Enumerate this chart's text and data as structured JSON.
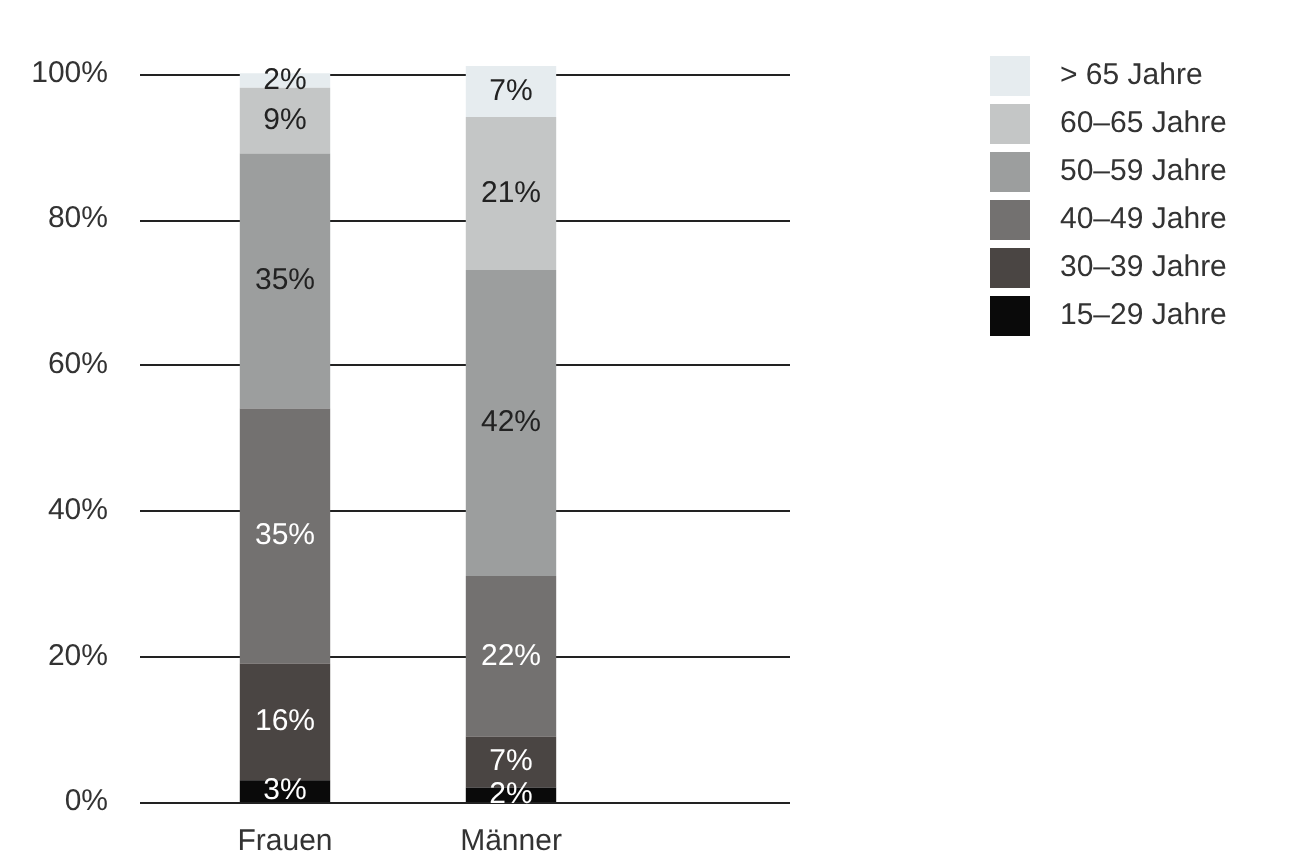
{
  "chart_data": {
    "type": "bar",
    "stacked": true,
    "categories": [
      "Frauen",
      "Männer"
    ],
    "series": [
      {
        "name": "15–29 Jahre",
        "color": "#0a0a0a",
        "values": [
          3,
          2
        ],
        "value_labels": [
          "3%",
          "2%"
        ]
      },
      {
        "name": "30–39 Jahre",
        "color": "#4a4543",
        "values": [
          16,
          7
        ],
        "value_labels": [
          "16%",
          "7%"
        ]
      },
      {
        "name": "40–49 Jahre",
        "color": "#737170",
        "values": [
          35,
          22
        ],
        "value_labels": [
          "35%",
          "22%"
        ]
      },
      {
        "name": "50–59 Jahre",
        "color": "#9c9e9e",
        "values": [
          35,
          42
        ],
        "value_labels": [
          "35%",
          "42%"
        ]
      },
      {
        "name": "60–65 Jahre",
        "color": "#c4c6c6",
        "values": [
          9,
          21
        ],
        "value_labels": [
          "9%",
          "21%"
        ]
      },
      {
        "name": "> 65 Jahre",
        "color": "#e6ecef",
        "values": [
          2,
          7
        ],
        "value_labels": [
          "2%",
          "7%"
        ]
      }
    ],
    "ylim": [
      0,
      101
    ],
    "yticks": [
      {
        "value": 0,
        "label": "0%"
      },
      {
        "value": 20,
        "label": "20%"
      },
      {
        "value": 40,
        "label": "40%"
      },
      {
        "value": 60,
        "label": "60%"
      },
      {
        "value": 80,
        "label": "80%"
      },
      {
        "value": 100,
        "label": "100%"
      }
    ],
    "grid": "y",
    "legend": "right"
  }
}
